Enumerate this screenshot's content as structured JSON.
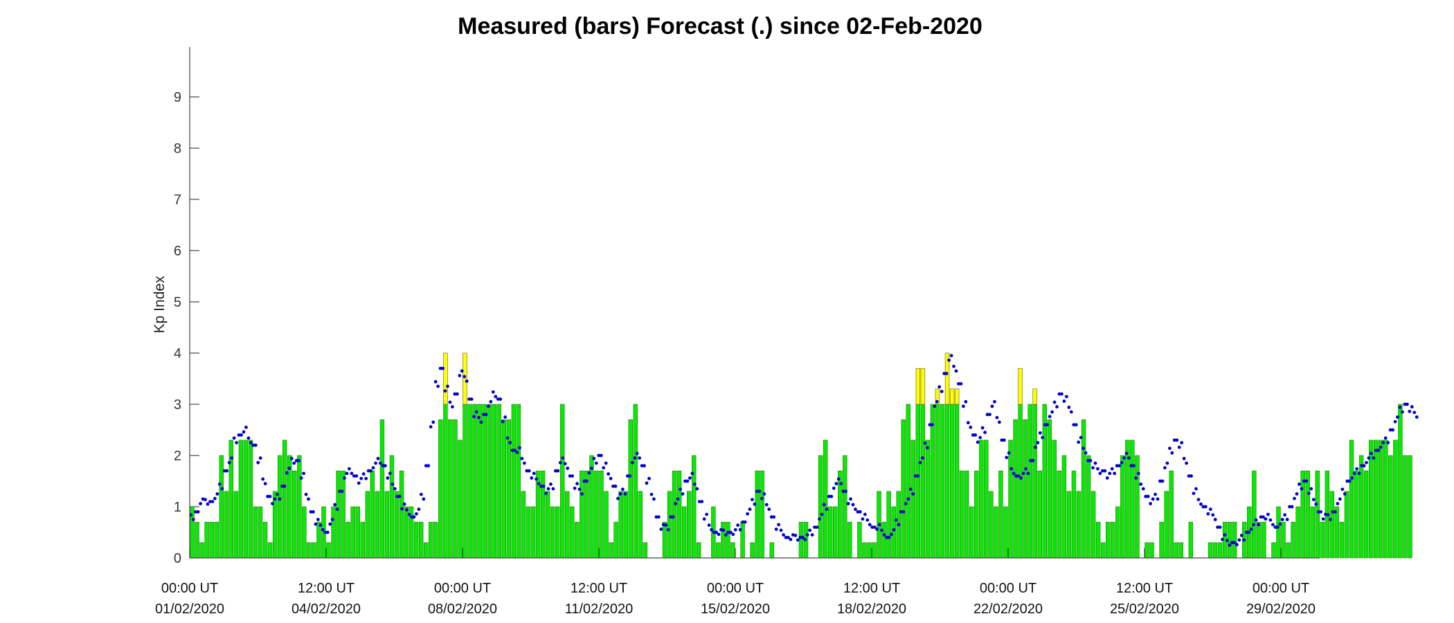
{
  "chart_data": {
    "type": "bar",
    "title": "Measured (bars) Forecast (.) since 02-Feb-2020",
    "xlabel": "",
    "ylabel": "Kp Index",
    "ylim": [
      0,
      10
    ],
    "yticks": [
      "0",
      "1",
      "2",
      "3",
      "4",
      "5",
      "6",
      "7",
      "8",
      "9"
    ],
    "xticks": [
      {
        "time": "00:00 UT",
        "date": "01/02/2020"
      },
      {
        "time": "12:00 UT",
        "date": "04/02/2020"
      },
      {
        "time": "00:00 UT",
        "date": "08/02/2020"
      },
      {
        "time": "12:00 UT",
        "date": "11/02/2020"
      },
      {
        "time": "00:00 UT",
        "date": "15/02/2020"
      },
      {
        "time": "12:00 UT",
        "date": "18/02/2020"
      },
      {
        "time": "00:00 UT",
        "date": "22/02/2020"
      },
      {
        "time": "12:00 UT",
        "date": "25/02/2020"
      },
      {
        "time": "00:00 UT",
        "date": "29/02/2020"
      }
    ],
    "grid": false,
    "bar_interval_hours": 3,
    "storm_threshold": 3,
    "colors": {
      "bar_normal": "#00ee00",
      "bar_active": "#ffff00",
      "bar_edge": "#5a5a2a",
      "forecast_dot": "#0000cc"
    },
    "series": [
      {
        "values": [
          1,
          0.7,
          0.3,
          0.7,
          0.7,
          0.7,
          2,
          1.3,
          2.3,
          1.3,
          2.3,
          2.3,
          2.3,
          1,
          1,
          0.7,
          0.3,
          1.3,
          2,
          2.3,
          2,
          1.7,
          2,
          1,
          0.3,
          0.3,
          0.7,
          1,
          0.3,
          1,
          1.7,
          1.7,
          0.7,
          1,
          1,
          0.7,
          1.3,
          1.7,
          1.3,
          2.7,
          1.3,
          2,
          1.3,
          1.7,
          1,
          1,
          0.7,
          0.7,
          0.3,
          0.7,
          0.7,
          2.7,
          4,
          2.7,
          2.7,
          2.3,
          4,
          3,
          3,
          3,
          3,
          3,
          3,
          3,
          2.7,
          2.7,
          3,
          3,
          1.3,
          1,
          1,
          1.7,
          1.7,
          1.3,
          1,
          1,
          3,
          1.3,
          1,
          0.7,
          1.7,
          1.7,
          2,
          1.7,
          1.7,
          1.3,
          0.3,
          0.7,
          1.3,
          1.3,
          2.7,
          3,
          1.3,
          0.3,
          0,
          0,
          0,
          0.7,
          1.3,
          1.7,
          1.7,
          1,
          1.3,
          2,
          0.3,
          0,
          0,
          1,
          0.3,
          0.7,
          0.7,
          0.3,
          0,
          0.7,
          0,
          0.3,
          1.7,
          1.7,
          0,
          0.3,
          0,
          0,
          0,
          0,
          0,
          0.7,
          0.7,
          0,
          0,
          2,
          2.3,
          1,
          1,
          1.7,
          2,
          0.7,
          0,
          0.7,
          0.3,
          0.3,
          0.3,
          1.3,
          0.7,
          1.3,
          1,
          1.3,
          2.7,
          3,
          2.3,
          3.7,
          3.7,
          2.3,
          3,
          3.3,
          3,
          4,
          3.3,
          3.3,
          1.7,
          1.7,
          1,
          1.7,
          2.3,
          2.3,
          1.3,
          1,
          1.7,
          1,
          2.3,
          2.7,
          3.7,
          2.7,
          3,
          3.3,
          1.7,
          3,
          2.7,
          2.3,
          1.7,
          2,
          1.3,
          1.7,
          1.3,
          2.7,
          2,
          1.3,
          0.7,
          0.3,
          0.7,
          0.7,
          1,
          2,
          2.3,
          2.3,
          2,
          0,
          0.3,
          0.3,
          0,
          0.7,
          1.3,
          1.7,
          0.3,
          0.3,
          0,
          0.7,
          0,
          0,
          0,
          0.3,
          0.3,
          0.3,
          0.7,
          0.7,
          0.7,
          0,
          0.7,
          1,
          1.7,
          0.7,
          0.7,
          0,
          0.3,
          1,
          0.7,
          0.3,
          0.7,
          1,
          1.7,
          1.7,
          1,
          1.7,
          0.7,
          1.7,
          1.3,
          1,
          0.7,
          1.3,
          2.3,
          1.7,
          2,
          1.7,
          2.3,
          2.3,
          2.3,
          2.3,
          2,
          2.3,
          3,
          2,
          2
        ]
      },
      {
        "values": [
          0.8,
          0.9,
          1.1,
          1.1,
          1.1,
          1.2,
          1.4,
          1.7,
          1.9,
          2.3,
          2.4,
          2.5,
          2.3,
          2.2,
          1.9,
          1.5,
          1.2,
          1.1,
          1.2,
          1.4,
          1.7,
          1.9,
          1.9,
          1.6,
          1.2,
          0.9,
          0.7,
          0.6,
          0.5,
          0.7,
          1.0,
          1.3,
          1.6,
          1.7,
          1.6,
          1.5,
          1.6,
          1.7,
          1.8,
          1.9,
          1.8,
          1.6,
          1.4,
          1.2,
          1.0,
          0.9,
          0.8,
          0.9,
          1.2,
          1.8,
          2.6,
          3.4,
          3.7,
          3.3,
          3.0,
          3.2,
          3.6,
          3.5,
          3.1,
          2.8,
          2.7,
          2.8,
          3.0,
          3.2,
          3.1,
          2.7,
          2.3,
          2.1,
          2.1,
          1.9,
          1.7,
          1.6,
          1.5,
          1.4,
          1.3,
          1.4,
          1.7,
          1.9,
          1.8,
          1.6,
          1.4,
          1.3,
          1.5,
          1.7,
          1.9,
          2.0,
          1.8,
          1.6,
          1.4,
          1.2,
          1.3,
          1.6,
          1.9,
          2.0,
          1.8,
          1.5,
          1.2,
          0.8,
          0.6,
          0.6,
          0.8,
          1.1,
          1.3,
          1.5,
          1.6,
          1.4,
          1.1,
          0.8,
          0.6,
          0.5,
          0.5,
          0.5,
          0.5,
          0.5,
          0.6,
          0.7,
          0.9,
          1.1,
          1.3,
          1.2,
          1.0,
          0.8,
          0.6,
          0.5,
          0.4,
          0.4,
          0.4,
          0.4,
          0.4,
          0.5,
          0.6,
          0.8,
          1.0,
          1.2,
          1.4,
          1.5,
          1.3,
          1.1,
          1.0,
          0.9,
          0.8,
          0.7,
          0.6,
          0.6,
          0.5,
          0.4,
          0.5,
          0.7,
          0.9,
          1.1,
          1.3,
          1.6,
          1.9,
          2.2,
          2.6,
          3.0,
          3.3,
          3.6,
          3.9,
          3.7,
          3.4,
          3.0,
          2.6,
          2.4,
          2.3,
          2.5,
          2.8,
          3.0,
          2.7,
          2.3,
          2.0,
          1.7,
          1.6,
          1.6,
          1.7,
          1.9,
          2.2,
          2.4,
          2.6,
          2.8,
          3.0,
          3.2,
          3.1,
          2.9,
          2.6,
          2.3,
          2.1,
          1.9,
          1.8,
          1.7,
          1.7,
          1.6,
          1.7,
          1.8,
          1.9,
          2.0,
          1.8,
          1.6,
          1.4,
          1.2,
          1.1,
          1.2,
          1.5,
          1.8,
          2.1,
          2.3,
          2.2,
          1.9,
          1.6,
          1.3,
          1.1,
          1.0,
          0.9,
          0.8,
          0.6,
          0.4,
          0.3,
          0.3,
          0.3,
          0.4,
          0.5,
          0.6,
          0.7,
          0.8,
          0.8,
          0.7,
          0.6,
          0.7,
          0.8,
          1.0,
          1.2,
          1.4,
          1.5,
          1.3,
          1.1,
          0.9,
          0.8,
          0.8,
          0.9,
          1.1,
          1.3,
          1.5,
          1.6,
          1.7,
          1.8,
          1.9,
          2.0,
          2.1,
          2.2,
          2.3,
          2.5,
          2.7,
          2.9,
          3.0,
          2.9,
          2.8
        ]
      }
    ]
  }
}
